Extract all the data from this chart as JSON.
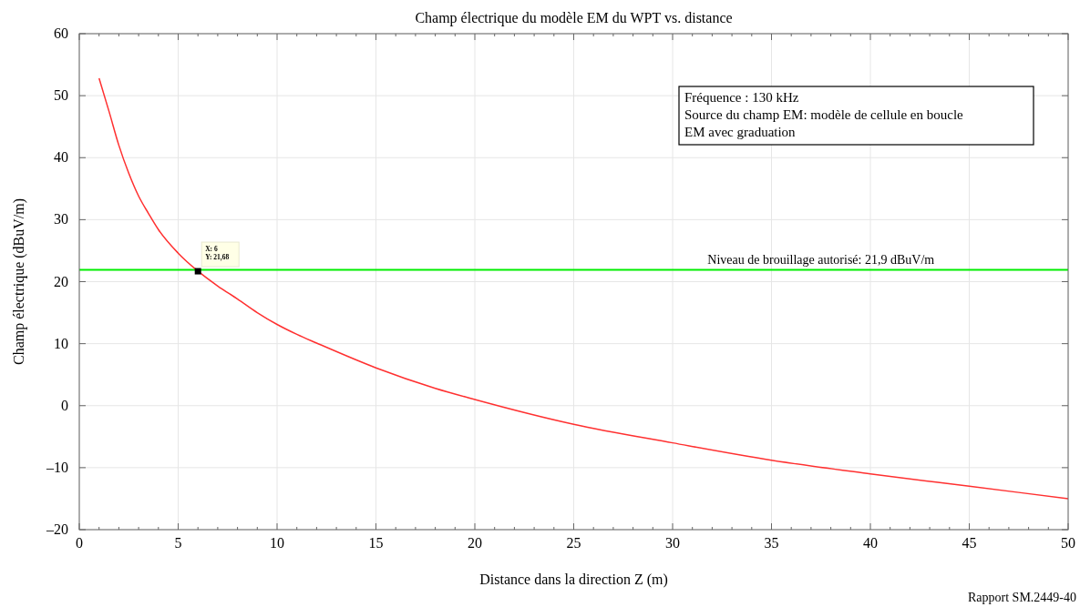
{
  "chart_data": {
    "type": "line",
    "title": "Champ électrique du modèle EM du WPT vs. distance",
    "xlabel": "Distance dans la direction Z (m)",
    "ylabel": "Champ électrique (dBuV/m)",
    "xlim": [
      0,
      50
    ],
    "ylim": [
      -20,
      60
    ],
    "xticks": [
      0,
      {
        "value": 1,
        "label": null
      },
      {
        "value": 2,
        "label": null
      },
      {
        "value": 3,
        "label": null
      },
      {
        "value": 4,
        "label": null
      },
      5,
      {
        "value": 6,
        "label": null
      },
      {
        "value": 7,
        "label": null
      },
      {
        "value": 8,
        "label": null
      },
      {
        "value": 9,
        "label": null
      },
      10,
      {
        "value": 11,
        "label": null
      },
      {
        "value": 12,
        "label": null
      },
      {
        "value": 13,
        "label": null
      },
      {
        "value": 14,
        "label": null
      },
      15,
      {
        "value": 16,
        "label": null
      },
      {
        "value": 17,
        "label": null
      },
      {
        "value": 18,
        "label": null
      },
      {
        "value": 19,
        "label": null
      },
      20,
      {
        "value": 21,
        "label": null
      },
      {
        "value": 22,
        "label": null
      },
      {
        "value": 23,
        "label": null
      },
      {
        "value": 24,
        "label": null
      },
      25,
      {
        "value": 26,
        "label": null
      },
      {
        "value": 27,
        "label": null
      },
      {
        "value": 28,
        "label": null
      },
      {
        "value": 29,
        "label": null
      },
      30,
      {
        "value": 31,
        "label": null
      },
      {
        "value": 32,
        "label": null
      },
      {
        "value": 33,
        "label": null
      },
      {
        "value": 34,
        "label": null
      },
      35,
      {
        "value": 36,
        "label": null
      },
      {
        "value": 37,
        "label": null
      },
      {
        "value": 38,
        "label": null
      },
      {
        "value": 39,
        "label": null
      },
      40,
      {
        "value": 41,
        "label": null
      },
      {
        "value": 42,
        "label": null
      },
      {
        "value": 43,
        "label": null
      },
      {
        "value": 44,
        "label": null
      },
      45,
      {
        "value": 46,
        "label": null
      },
      {
        "value": 47,
        "label": null
      },
      {
        "value": 48,
        "label": null
      },
      {
        "value": 49,
        "label": null
      },
      50
    ],
    "yticks": [
      {
        "value": -20,
        "label": "–20"
      },
      {
        "value": -10,
        "label": "–10"
      },
      0,
      10,
      20,
      30,
      40,
      50,
      60
    ],
    "grid": true,
    "marker": "none",
    "line_style": "solid",
    "series": [
      {
        "color": "#ff3030",
        "x": [
          1,
          1.5,
          2,
          2.5,
          3,
          3.5,
          4,
          5,
          6,
          7,
          8,
          9,
          10,
          11,
          12,
          15,
          18,
          20,
          25,
          30,
          35,
          40,
          45,
          50
        ],
        "values": [
          52.8,
          47.5,
          42,
          37.5,
          33.8,
          31,
          28.4,
          24.6,
          21.7,
          19.3,
          17.2,
          15,
          13.1,
          11.5,
          10.1,
          6.1,
          2.8,
          1,
          -3,
          -6,
          -8.8,
          -11,
          -13,
          -15
        ]
      },
      {
        "type": "scatter",
        "marker": "square",
        "color": "#000000",
        "x": [
          6
        ],
        "values": [
          21.68
        ]
      }
    ],
    "ref_lines": [
      {
        "axis": "y",
        "value": 21.9,
        "label": "Niveau de brouillage autorisé: 21,9 dBuV/m",
        "color": "#00ee00"
      }
    ],
    "annotations": [
      {
        "text": "X: 6\nY: 21,68",
        "x": 6,
        "y": 21.68
      },
      "Fréquence : 130 kHz\nSource du champ EM: modèle de cellule en boucle\nEM avec graduation",
      "Rapport SM.2449-40"
    ]
  }
}
